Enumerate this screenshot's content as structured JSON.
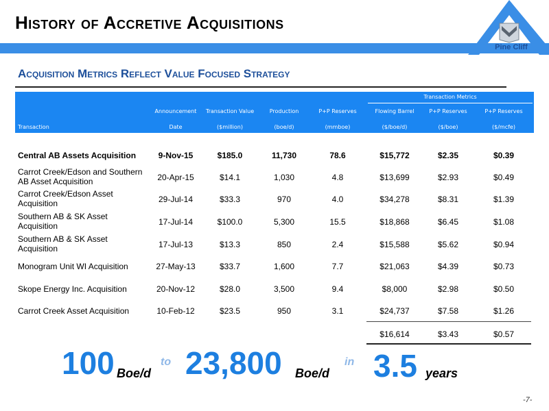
{
  "header": {
    "title": "History of Accretive Acquisitions",
    "logo_text": "Pine Cliff"
  },
  "subtitle": "Acquisition Metrics Reflect Value Focused Strategy",
  "table": {
    "group_header": "Transaction Metrics",
    "columns": [
      {
        "l1": "",
        "l2": "Transaction"
      },
      {
        "l1": "Announcement",
        "l2": "Date"
      },
      {
        "l1": "Transaction Value",
        "l2": "($million)"
      },
      {
        "l1": "Production",
        "l2": "(boe/d)"
      },
      {
        "l1": "P+P Reserves",
        "l2": "(mmboe)"
      },
      {
        "l1": "Flowing Barrel",
        "l2": "($/boe/d)"
      },
      {
        "l1": "P+P Reserves",
        "l2": "($/boe)"
      },
      {
        "l1": "P+P Reserves",
        "l2": "($/mcfe)"
      }
    ],
    "rows": [
      {
        "name": "Central AB Assets Acquisition",
        "date": "9-Nov-15",
        "value": "$185.0",
        "prod": "11,730",
        "res": "78.6",
        "flow": "$15,772",
        "boe": "$2.35",
        "mcfe": "$0.39"
      },
      {
        "name": "Carrot Creek/Edson and Southern AB Asset  Acquisition",
        "date": "20-Apr-15",
        "value": "$14.1",
        "prod": "1,030",
        "res": "4.8",
        "flow": "$13,699",
        "boe": "$2.93",
        "mcfe": "$0.49"
      },
      {
        "name": "Carrot Creek/Edson Asset Acquisition",
        "date": "29-Jul-14",
        "value": "$33.3",
        "prod": "970",
        "res": "4.0",
        "flow": "$34,278",
        "boe": "$8.31",
        "mcfe": "$1.39"
      },
      {
        "name": "Southern AB & SK Asset Acquisition",
        "date": "17-Jul-14",
        "value": "$100.0",
        "prod": "5,300",
        "res": "15.5",
        "flow": "$18,868",
        "boe": "$6.45",
        "mcfe": "$1.08"
      },
      {
        "name": "Southern AB & SK Asset Acquisition",
        "date": "17-Jul-13",
        "value": "$13.3",
        "prod": "850",
        "res": "2.4",
        "flow": "$15,588",
        "boe": "$5.62",
        "mcfe": "$0.94"
      },
      {
        "name": "Monogram Unit WI Acquisition",
        "date": "27-May-13",
        "value": "$33.7",
        "prod": "1,600",
        "res": "7.7",
        "flow": "$21,063",
        "boe": "$4.39",
        "mcfe": "$0.73"
      },
      {
        "name": "Skope Energy Inc. Acquisition",
        "date": "20-Nov-12",
        "value": "$28.0",
        "prod": "3,500",
        "res": "9.4",
        "flow": "$8,000",
        "boe": "$2.98",
        "mcfe": "$0.50"
      },
      {
        "name": "Carrot Creek Asset Acquisition",
        "date": "10-Feb-12",
        "value": "$23.5",
        "prod": "950",
        "res": "3.1",
        "flow": "$24,737",
        "boe": "$7.58",
        "mcfe": "$1.26"
      }
    ],
    "totals": {
      "flow": "$16,614",
      "boe": "$3.43",
      "mcfe": "$0.57"
    }
  },
  "summary": {
    "from_value": "100",
    "from_unit": "Boe/d",
    "to_word": "to",
    "to_value": "23,800",
    "to_unit": "Boe/d",
    "in_word": "in",
    "years_value": "3.5",
    "years_unit": "years"
  },
  "page_number": "-7-",
  "colors": {
    "accent": "#1b86f2",
    "title_bar": "#3a8ee6",
    "navy": "#1d4f9a",
    "big_number": "#1d7fe0"
  }
}
